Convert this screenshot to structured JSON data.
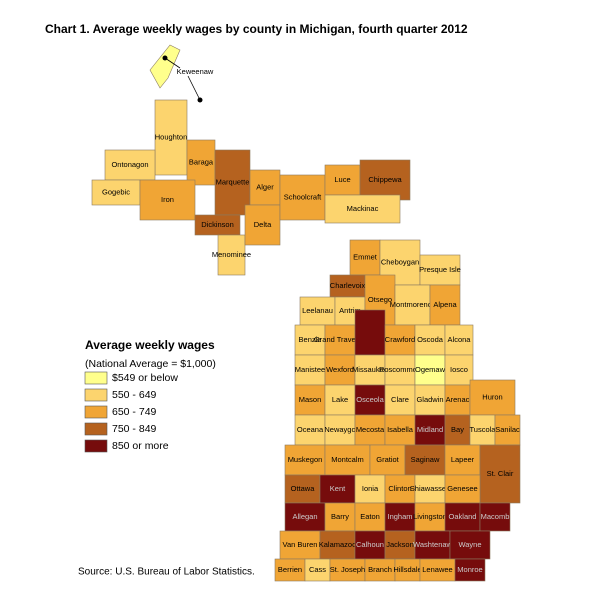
{
  "title": "Chart 1. Average weekly wages by county in Michigan, fourth quarter 2012",
  "legend": {
    "title": "Average weekly wages",
    "subtitle": "(National Average = $1,000)",
    "items": [
      {
        "label": "$549 or below",
        "color": "#ffff8c"
      },
      {
        "label": "550 - 649",
        "color": "#fcd46e"
      },
      {
        "label": "650 - 749",
        "color": "#f0a535"
      },
      {
        "label": "750 - 849",
        "color": "#b5621f"
      },
      {
        "label": "850 or more",
        "color": "#760c0c"
      }
    ]
  },
  "counties": [
    {
      "name": "Keweenaw",
      "color": "#ffff8c"
    },
    {
      "name": "Houghton",
      "color": "#fcd46e"
    },
    {
      "name": "Ontonagon",
      "color": "#fcd46e"
    },
    {
      "name": "Gogebic",
      "color": "#fcd46e"
    },
    {
      "name": "Baraga",
      "color": "#f0a535"
    },
    {
      "name": "Iron",
      "color": "#f0a535"
    },
    {
      "name": "Marquette",
      "color": "#b5621f"
    },
    {
      "name": "Dickinson",
      "color": "#b5621f"
    },
    {
      "name": "Menominee",
      "color": "#fcd46e"
    },
    {
      "name": "Alger",
      "color": "#f0a535"
    },
    {
      "name": "Delta",
      "color": "#f0a535"
    },
    {
      "name": "Schoolcraft",
      "color": "#f0a535"
    },
    {
      "name": "Luce",
      "color": "#f0a535"
    },
    {
      "name": "Chippewa",
      "color": "#b5621f"
    },
    {
      "name": "Mackinac",
      "color": "#fcd46e"
    },
    {
      "name": "Emmet",
      "color": "#f0a535"
    },
    {
      "name": "Cheboygan",
      "color": "#fcd46e"
    },
    {
      "name": "Presque Isle",
      "color": "#fcd46e"
    },
    {
      "name": "Charlevoix",
      "color": "#b5621f"
    },
    {
      "name": "Leelanau",
      "color": "#fcd46e"
    },
    {
      "name": "Antrim",
      "color": "#fcd46e"
    },
    {
      "name": "Otsego",
      "color": "#f0a535"
    },
    {
      "name": "Montmorency",
      "color": "#fcd46e"
    },
    {
      "name": "Alpena",
      "color": "#f0a535"
    },
    {
      "name": "Benzie",
      "color": "#fcd46e"
    },
    {
      "name": "Grand Traverse",
      "color": "#f0a535"
    },
    {
      "name": null,
      "color": "#760c0c"
    },
    {
      "name": "Crawford",
      "color": "#f0a535"
    },
    {
      "name": "Oscoda",
      "color": "#fcd46e"
    },
    {
      "name": "Alcona",
      "color": "#fcd46e"
    },
    {
      "name": "Manistee",
      "color": "#fcd46e"
    },
    {
      "name": "Wexford",
      "color": "#f0a535"
    },
    {
      "name": "Missaukee",
      "color": "#fcd46e"
    },
    {
      "name": "Roscommon",
      "color": "#fcd46e"
    },
    {
      "name": "Ogemaw",
      "color": "#ffff8c"
    },
    {
      "name": "Iosco",
      "color": "#fcd46e"
    },
    {
      "name": "Mason",
      "color": "#f0a535"
    },
    {
      "name": "Lake",
      "color": "#fcd46e"
    },
    {
      "name": "Osceola",
      "color": "#760c0c"
    },
    {
      "name": "Clare",
      "color": "#fcd46e"
    },
    {
      "name": "Gladwin",
      "color": "#fcd46e"
    },
    {
      "name": "Arenac",
      "color": "#f0a535"
    },
    {
      "name": "Huron",
      "color": "#f0a535"
    },
    {
      "name": "Oceana",
      "color": "#fcd46e"
    },
    {
      "name": "Newaygo",
      "color": "#fcd46e"
    },
    {
      "name": "Mecosta",
      "color": "#f0a535"
    },
    {
      "name": "Isabella",
      "color": "#f0a535"
    },
    {
      "name": "Midland",
      "color": "#760c0c"
    },
    {
      "name": "Bay",
      "color": "#b5621f"
    },
    {
      "name": "Tuscola",
      "color": "#fcd46e"
    },
    {
      "name": "Sanilac",
      "color": "#f0a535"
    },
    {
      "name": "Muskegon",
      "color": "#f0a535"
    },
    {
      "name": "Montcalm",
      "color": "#f0a535"
    },
    {
      "name": "Gratiot",
      "color": "#f0a535"
    },
    {
      "name": "Saginaw",
      "color": "#b5621f"
    },
    {
      "name": "Lapeer",
      "color": "#f0a535"
    },
    {
      "name": "St. Clair",
      "color": "#b5621f"
    },
    {
      "name": "Ottawa",
      "color": "#b5621f"
    },
    {
      "name": "Kent",
      "color": "#760c0c"
    },
    {
      "name": "Ionia",
      "color": "#fcd46e"
    },
    {
      "name": "Clinton",
      "color": "#f0a535"
    },
    {
      "name": "Shiawassee",
      "color": "#fcd46e"
    },
    {
      "name": "Genesee",
      "color": "#f0a535"
    },
    {
      "name": "Allegan",
      "color": "#760c0c"
    },
    {
      "name": "Barry",
      "color": "#f0a535"
    },
    {
      "name": "Eaton",
      "color": "#f0a535"
    },
    {
      "name": "Ingham",
      "color": "#760c0c"
    },
    {
      "name": "Livingston",
      "color": "#f0a535"
    },
    {
      "name": "Oakland",
      "color": "#760c0c"
    },
    {
      "name": "Macomb",
      "color": "#760c0c"
    },
    {
      "name": "Van Buren",
      "color": "#f0a535"
    },
    {
      "name": "Kalamazoo",
      "color": "#b5621f"
    },
    {
      "name": "Calhoun",
      "color": "#760c0c"
    },
    {
      "name": "Jackson",
      "color": "#b5621f"
    },
    {
      "name": "Washtenaw",
      "color": "#760c0c"
    },
    {
      "name": "Wayne",
      "color": "#760c0c"
    },
    {
      "name": "Berrien",
      "color": "#f0a535"
    },
    {
      "name": "Cass",
      "color": "#fcd46e"
    },
    {
      "name": "St. Joseph",
      "color": "#f0a535"
    },
    {
      "name": "Branch",
      "color": "#f0a535"
    },
    {
      "name": "Hillsdale",
      "color": "#f0a535"
    },
    {
      "name": "Lenawee",
      "color": "#f0a535"
    },
    {
      "name": "Monroe",
      "color": "#760c0c"
    }
  ],
  "source": "Source: U.S. Bureau of Labor Statistics."
}
